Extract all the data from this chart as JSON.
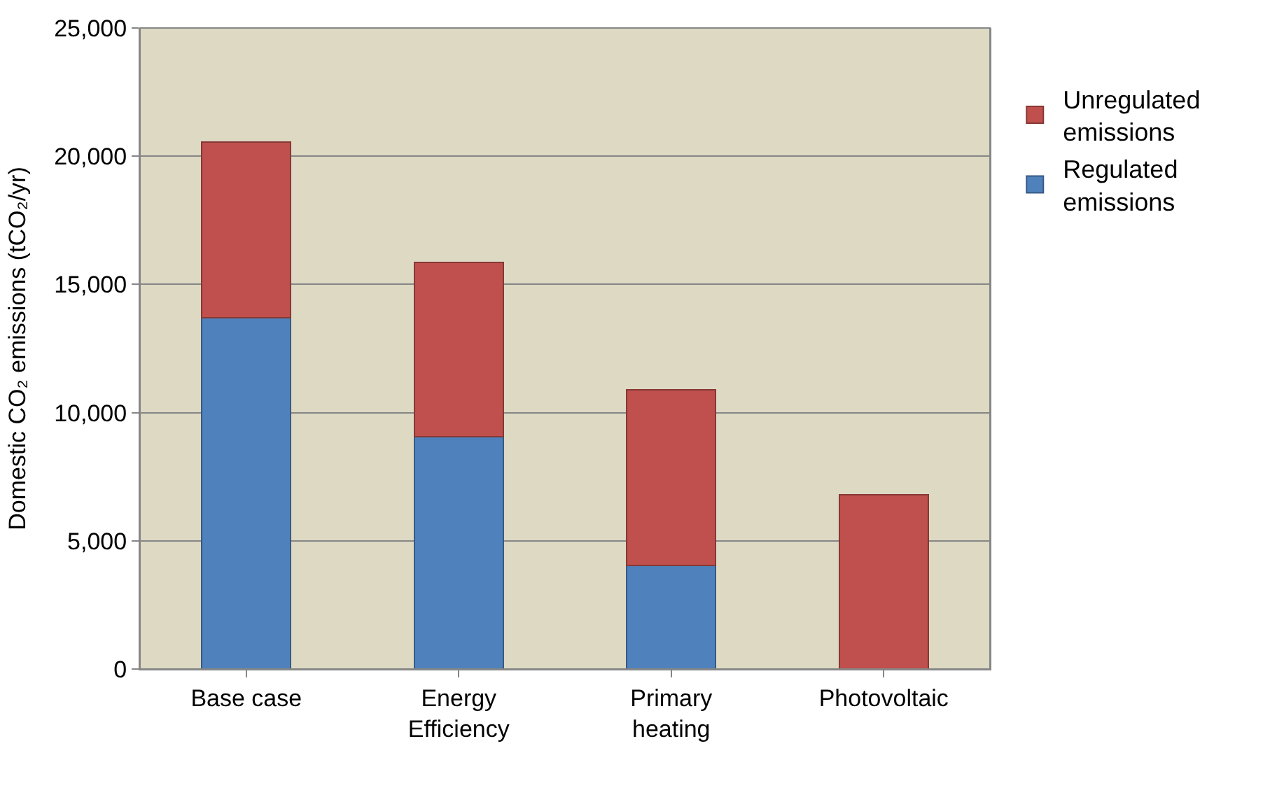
{
  "chart_data": {
    "type": "bar",
    "stacked": true,
    "ylabel": "Domestic CO₂ emissions (tCO₂/yr)",
    "categories": [
      "Base case",
      "Energy Efficiency",
      "Primary heating",
      "Photovoltaic"
    ],
    "series": [
      {
        "name": "Regulated emissions",
        "color": "#4f81bd",
        "values": [
          13700,
          9050,
          4050,
          0
        ]
      },
      {
        "name": "Unregulated emissions",
        "color": "#c0504d",
        "values": [
          6850,
          6800,
          6850,
          6800
        ]
      }
    ],
    "ylim": [
      0,
      25000
    ],
    "yticks": [
      0,
      {
        "value": 5000,
        "label": "5,000"
      },
      {
        "value": 10000,
        "label": "10,000"
      },
      {
        "value": 15000,
        "label": "15,000"
      },
      {
        "value": 20000,
        "label": "20,000"
      },
      {
        "value": 25000,
        "label": "25,000"
      }
    ],
    "grid": "y",
    "legend": "right"
  }
}
